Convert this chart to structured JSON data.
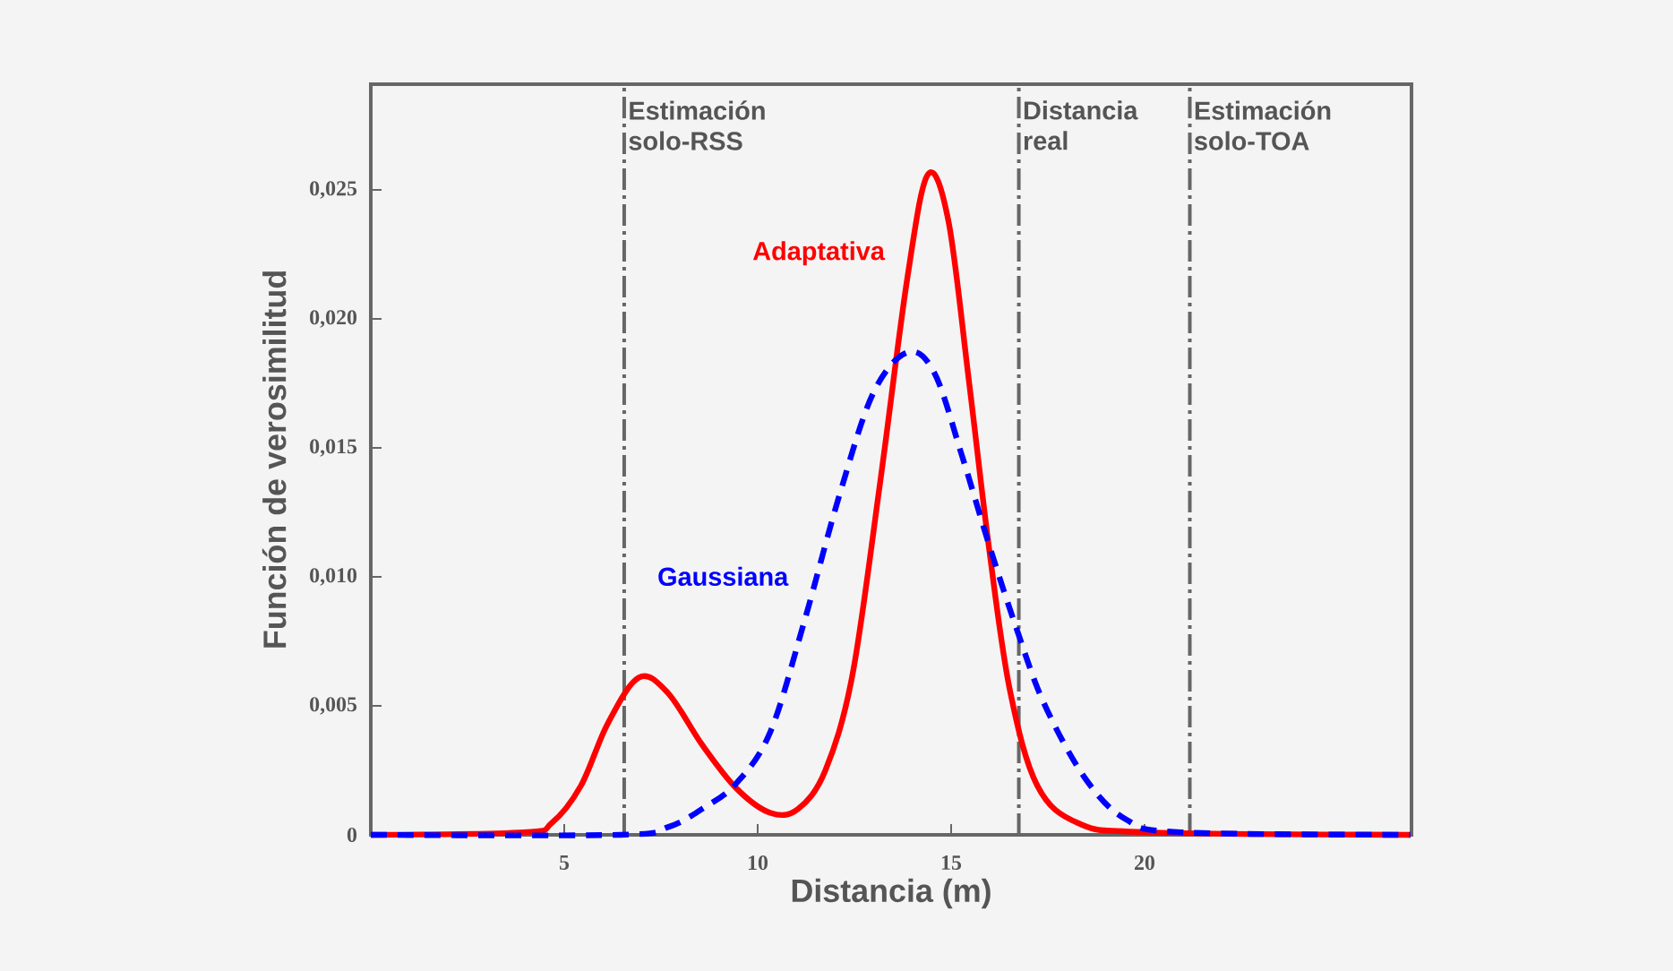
{
  "chart_data": {
    "type": "line",
    "xlabel": "Distancia (m)",
    "ylabel": "Función de verosimilitud",
    "xlim": [
      0,
      26.9
    ],
    "ylim": [
      0,
      0.0291
    ],
    "xticks": [
      5,
      10,
      15,
      20
    ],
    "yticks": [
      0,
      {
        "value": 0.005,
        "label": "0,005"
      },
      {
        "value": 0.01,
        "label": "0,010"
      },
      {
        "value": 0.015,
        "label": "0,015"
      },
      {
        "value": 0.02,
        "label": "0,020"
      },
      {
        "value": 0.025,
        "label": "0,025"
      }
    ],
    "grid": false,
    "legend": false,
    "marker": "none",
    "series": [
      {
        "name": "Adaptativa",
        "color": "#ff0000",
        "line_style": "solid",
        "x": [
          0,
          3.96,
          4.67,
          5.43,
          6.12,
          6.93,
          7.68,
          8.56,
          9.45,
          10.33,
          11.04,
          11.75,
          12.45,
          13.16,
          13.87,
          14.4,
          14.93,
          15.46,
          15.99,
          16.52,
          17.23,
          18.29,
          20.05,
          26.87
        ],
        "values": [
          0,
          0.0001,
          0.00045,
          0.0019,
          0.0043,
          0.0061,
          0.0055,
          0.0035,
          0.0018,
          0.00085,
          0.001,
          0.0025,
          0.0062,
          0.0136,
          0.0216,
          0.0256,
          0.0238,
          0.0176,
          0.011,
          0.0056,
          0.0019,
          0.00045,
          0.0001,
          0
        ]
      },
      {
        "name": "Gaussiana",
        "color": "#0000ff",
        "line_style": "dashed",
        "x": [
          0,
          6.44,
          7.68,
          8.56,
          9.45,
          10.33,
          11.21,
          12.1,
          12.98,
          13.87,
          14.57,
          15.28,
          15.99,
          16.69,
          17.4,
          18.46,
          19.52,
          20.93,
          26.87
        ],
        "values": [
          0,
          0,
          0.0003,
          0.001,
          0.002,
          0.004,
          0.0083,
          0.0131,
          0.0171,
          0.0187,
          0.0179,
          0.0147,
          0.0112,
          0.008,
          0.0051,
          0.0022,
          0.0006,
          0.0001,
          0
        ]
      }
    ],
    "ref_lines": [
      {
        "axis": "x",
        "value": 6.55,
        "label": "Estimación solo-RSS",
        "color": "#666666",
        "line_style": "dashdotted"
      },
      {
        "axis": "x",
        "value": 16.75,
        "label": "Distancia real",
        "color": "#666666",
        "line_style": "dashdotted"
      },
      {
        "axis": "x",
        "value": 21.17,
        "label": "Estimación solo-TOA",
        "color": "#666666",
        "line_style": "dashdotted"
      }
    ]
  }
}
